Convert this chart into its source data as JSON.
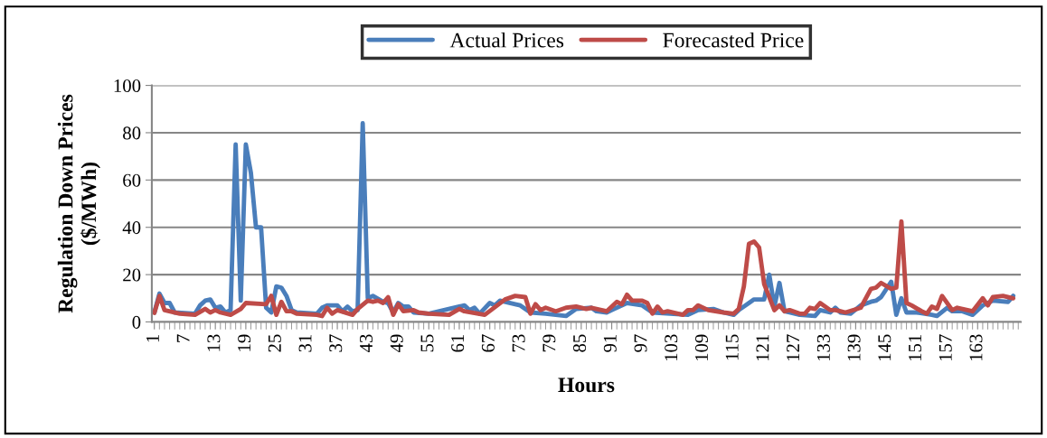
{
  "chart_data": {
    "type": "line",
    "xlabel": "Hours",
    "ylabel": "Regulation Down Prices\n($/MWh)",
    "xlim": [
      0.5,
      171.5
    ],
    "xticks": [
      1,
      7,
      13,
      19,
      25,
      31,
      37,
      43,
      49,
      55,
      61,
      67,
      73,
      79,
      85,
      91,
      97,
      103,
      109,
      115,
      121,
      127,
      133,
      139,
      145,
      151,
      157,
      163
    ],
    "ylim": [
      0,
      100
    ],
    "yticks": [
      0,
      20,
      40,
      60,
      80,
      100
    ],
    "grid": "y",
    "legend": "top",
    "marker": "none",
    "line_style": "solid",
    "series": [
      {
        "name": "Actual Prices",
        "color": "#4a7ebb",
        "x": [
          1,
          2,
          3,
          4,
          5,
          9,
          10,
          11,
          12,
          13,
          14,
          15,
          16,
          17,
          18,
          19,
          20,
          21,
          22,
          23,
          24,
          25,
          26,
          27,
          28,
          29,
          33,
          34,
          35,
          37,
          38,
          39,
          40,
          41,
          42,
          43,
          44,
          46,
          47,
          48,
          49,
          50,
          51,
          52,
          55,
          61,
          62,
          63,
          64,
          65,
          67,
          68,
          69,
          72,
          73,
          75,
          78,
          82,
          84,
          87,
          88,
          90,
          91,
          94,
          97,
          99,
          106,
          108,
          111,
          113,
          115,
          116,
          118,
          119,
          121,
          122,
          123,
          124,
          125,
          126,
          128,
          131,
          132,
          134,
          135,
          136,
          138,
          140,
          142,
          143,
          144,
          146,
          147,
          148,
          149,
          151,
          154,
          155,
          157,
          158,
          160,
          162,
          164,
          166,
          169,
          170
        ],
        "values": [
          4,
          12,
          8,
          8,
          4,
          3.5,
          7,
          9,
          9.5,
          6,
          6.5,
          4,
          5,
          75,
          9,
          75,
          63,
          40,
          40,
          6,
          4,
          15,
          14.5,
          11,
          5,
          4,
          3.5,
          6,
          7,
          7,
          4.5,
          6.5,
          4.5,
          5,
          84,
          10,
          11,
          8.5,
          8,
          4,
          8,
          6.5,
          6.5,
          4,
          3.5,
          6.5,
          7,
          5,
          6,
          3.5,
          8,
          7,
          9,
          7.5,
          7,
          4,
          3.5,
          2.5,
          5.5,
          6,
          4.5,
          4,
          5,
          8,
          7,
          4,
          3,
          5,
          5.5,
          4,
          3,
          5,
          8,
          9.5,
          9.5,
          20,
          6.5,
          16.5,
          4.5,
          4,
          3,
          2.5,
          5,
          4,
          6,
          4,
          3.5,
          7,
          8.5,
          9,
          10.5,
          17,
          3,
          10,
          4,
          4,
          3,
          2.5,
          6,
          4.5,
          4.5,
          3,
          7,
          9,
          8.5,
          11
        ]
      },
      {
        "name": "Forecasted Price",
        "color": "#be4b48",
        "x": [
          1,
          2,
          3,
          6,
          9,
          11,
          12,
          13,
          14,
          16,
          18,
          19,
          23,
          24,
          25,
          26,
          27,
          28,
          29,
          33,
          34,
          35,
          36,
          37,
          40,
          41,
          43,
          44,
          45,
          46,
          47,
          48,
          49,
          50,
          52,
          53,
          55,
          59,
          61,
          62,
          66,
          70,
          72,
          74,
          75,
          76,
          77,
          78,
          80,
          82,
          84,
          86,
          87,
          90,
          92,
          93,
          94,
          95,
          97,
          98,
          99,
          100,
          101,
          102,
          105,
          106,
          107,
          108,
          110,
          113,
          115,
          116,
          117,
          118,
          119,
          120,
          121,
          123,
          124,
          125,
          126,
          128,
          129,
          130,
          131,
          132,
          134,
          135,
          136,
          137,
          140,
          142,
          143,
          144,
          146,
          147,
          148,
          149,
          150,
          152,
          153,
          154,
          155,
          156,
          158,
          159,
          162,
          164,
          165,
          166,
          168,
          170
        ],
        "values": [
          3.8,
          11,
          5,
          3.5,
          3,
          5.5,
          4,
          5,
          4,
          3,
          5.5,
          8,
          7.5,
          11,
          3,
          8.5,
          4.5,
          4.5,
          3.5,
          3,
          2.5,
          6,
          3.5,
          5,
          3,
          5.5,
          9,
          8.5,
          9,
          8,
          10.5,
          3,
          7.5,
          4.5,
          5,
          4,
          3.5,
          3,
          5.5,
          4.5,
          3,
          9.5,
          11,
          10.5,
          3.5,
          7.5,
          5,
          6,
          4.5,
          6,
          6.5,
          5.5,
          6,
          4.5,
          8.5,
          7.5,
          11.5,
          9,
          9,
          8,
          3.5,
          6.5,
          4,
          4.5,
          3,
          5,
          5,
          7,
          5,
          4,
          3.5,
          5.5,
          15,
          33,
          34,
          31.5,
          16,
          5,
          7,
          4.5,
          5,
          3.5,
          3.5,
          6,
          5.5,
          8,
          5,
          5,
          4.5,
          4,
          6,
          14,
          14.5,
          16.5,
          14,
          14.5,
          42.5,
          8,
          7,
          4.5,
          3.5,
          6.5,
          5.5,
          11,
          5,
          6,
          4.5,
          10,
          7,
          10.5,
          11,
          10
        ]
      }
    ]
  }
}
